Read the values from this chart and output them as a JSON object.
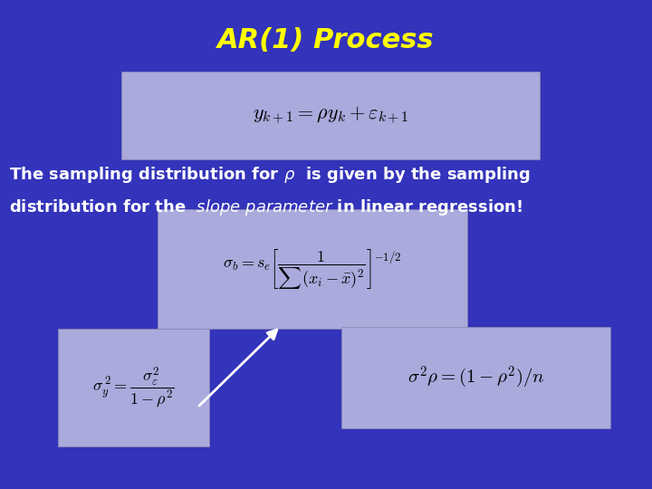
{
  "background_color": "#3333BB",
  "title": "AR(1) Process",
  "title_color": "#FFFF00",
  "title_fontsize": 22,
  "text_color": "white",
  "box_color": "#AAAADD",
  "fig_w": 7.2,
  "fig_h": 5.4,
  "dpi": 100
}
